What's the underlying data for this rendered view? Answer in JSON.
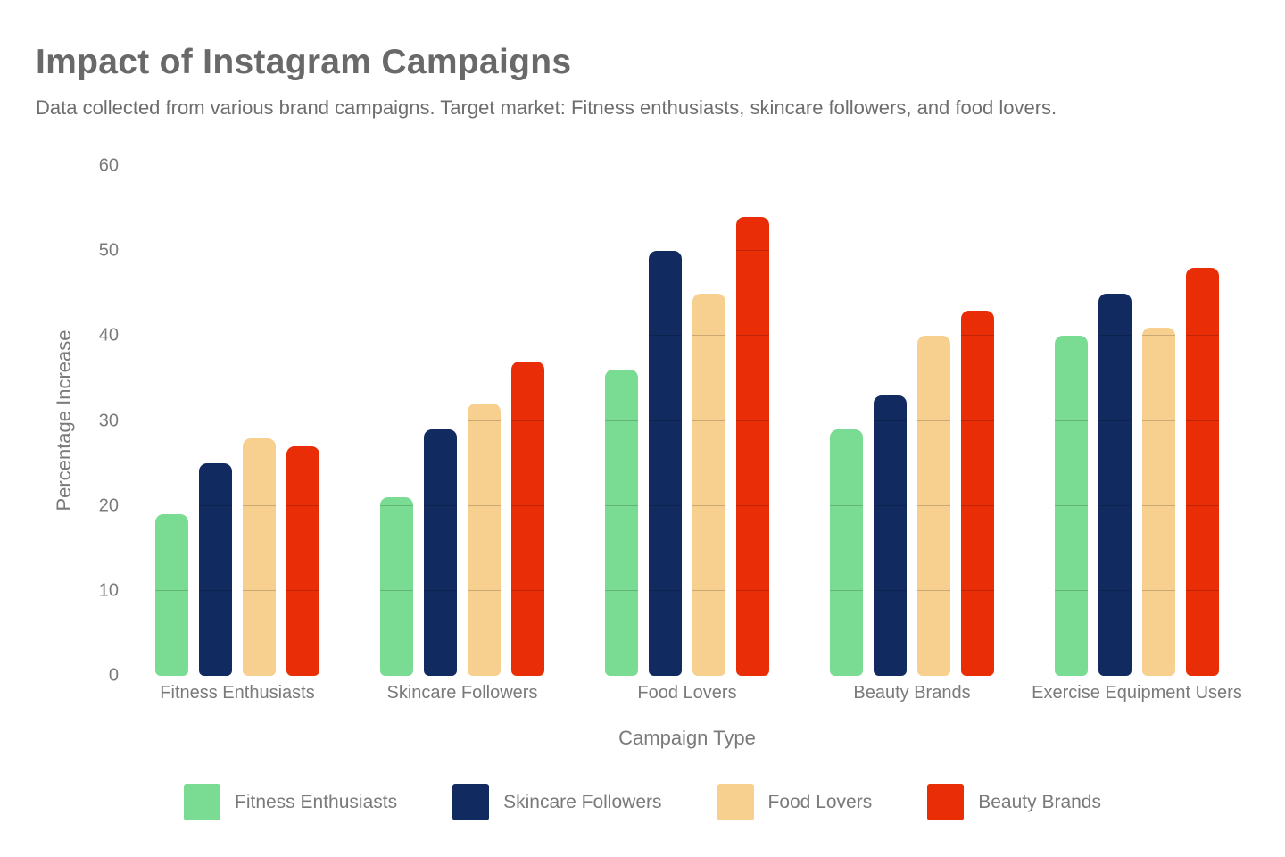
{
  "header": {
    "title": "Impact of Instagram Campaigns",
    "subtitle": "Data collected from various brand campaigns. Target market: Fitness enthusiasts, skincare followers, and food lovers."
  },
  "chart_data": {
    "type": "bar",
    "title": "Impact of Instagram Campaigns",
    "subtitle": "Data collected from various brand campaigns. Target market: Fitness enthusiasts, skincare followers, and food lovers.",
    "xlabel": "Campaign Type",
    "ylabel": "Percentage Increase",
    "categories": [
      "Fitness Enthusiasts",
      "Skincare Followers",
      "Food Lovers",
      "Beauty Brands",
      "Exercise Equipment Users"
    ],
    "series": [
      {
        "name": "Fitness Enthusiasts",
        "color": "#7ADB92",
        "values": [
          19,
          21,
          36,
          29,
          40
        ]
      },
      {
        "name": "Skincare Followers",
        "color": "#112A60",
        "values": [
          25,
          29,
          50,
          33,
          45
        ]
      },
      {
        "name": "Food Lovers",
        "color": "#F7CF8E",
        "values": [
          28,
          32,
          45,
          40,
          41
        ]
      },
      {
        "name": "Beauty Brands",
        "color": "#E82D07",
        "values": [
          27,
          37,
          54,
          43,
          48
        ]
      }
    ],
    "yticks": [
      0,
      10,
      20,
      30,
      40,
      50,
      60
    ],
    "ylim": [
      0,
      60
    ],
    "grid": "horizontal gridlines every 10 units, visible over bars",
    "legend_position": "bottom",
    "colors": {
      "title_text": "#696969",
      "axis_text": "#7a7a7a",
      "background": "#ffffff"
    }
  }
}
